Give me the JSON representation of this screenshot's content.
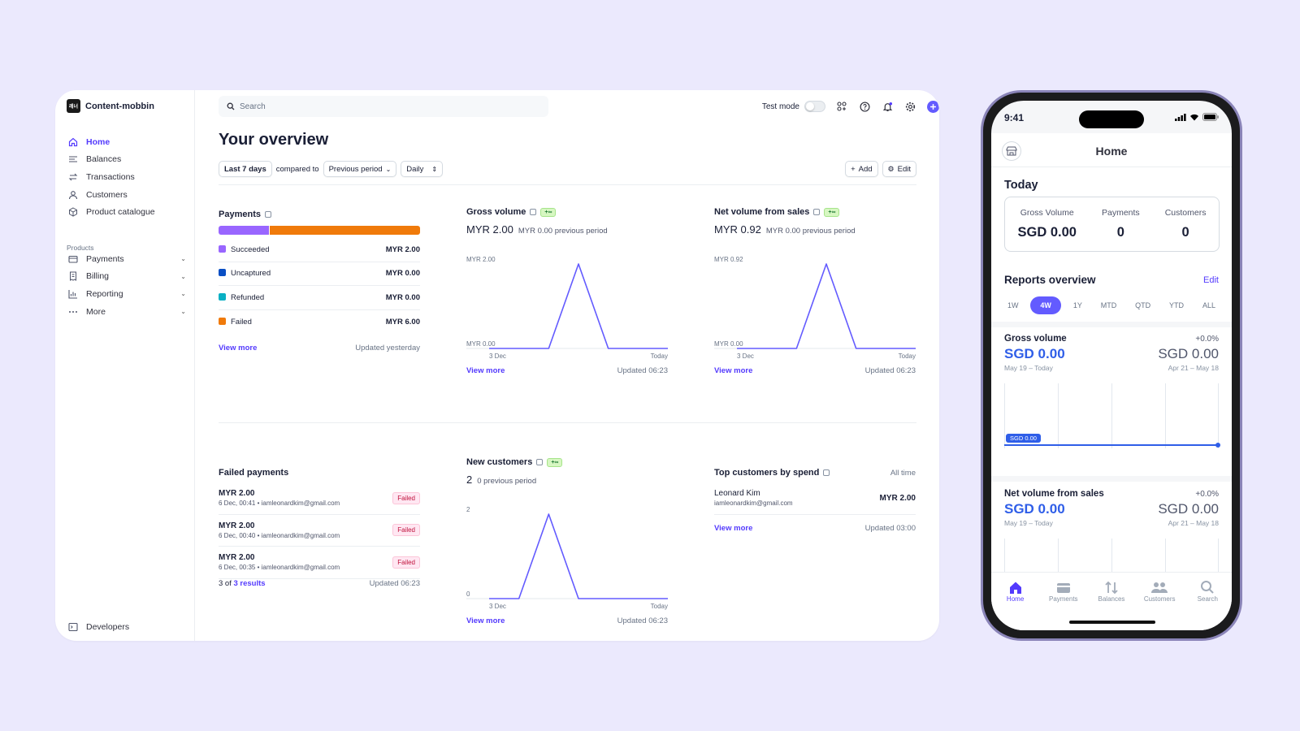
{
  "sidebar": {
    "account_name": "Content-mobbin",
    "logo_text": "레너",
    "items": [
      {
        "label": "Home",
        "icon": "home-icon"
      },
      {
        "label": "Balances",
        "icon": "balances-icon"
      },
      {
        "label": "Transactions",
        "icon": "transactions-icon"
      },
      {
        "label": "Customers",
        "icon": "customers-icon"
      },
      {
        "label": "Product catalogue",
        "icon": "product-icon"
      }
    ],
    "products_heading": "Products",
    "product_items": [
      {
        "label": "Payments",
        "icon": "payments-icon"
      },
      {
        "label": "Billing",
        "icon": "billing-icon"
      },
      {
        "label": "Reporting",
        "icon": "reporting-icon"
      },
      {
        "label": "More",
        "icon": "more-icon"
      }
    ],
    "developers": "Developers"
  },
  "topbar": {
    "search_placeholder": "Search",
    "test_mode": "Test mode"
  },
  "overview": {
    "title": "Your overview",
    "range": "Last 7 days",
    "compared_to": "compared to",
    "comparison": "Previous period",
    "interval": "Daily",
    "add": "Add",
    "edit": "Edit"
  },
  "payments": {
    "title": "Payments",
    "segments": [
      {
        "label": "Succeeded",
        "value": "MYR 2.00",
        "share": 0.25,
        "color": "#9966ff"
      },
      {
        "label": "Uncaptured",
        "value": "MYR 0.00",
        "share": 0,
        "color": "#0a4fc4"
      },
      {
        "label": "Refunded",
        "value": "MYR 0.00",
        "share": 0,
        "color": "#0ab0c4"
      },
      {
        "label": "Failed",
        "value": "MYR 6.00",
        "share": 0.75,
        "color": "#f07a0a"
      }
    ],
    "view_more": "View more",
    "updated": "Updated yesterday"
  },
  "gross_volume": {
    "title": "Gross volume",
    "badge": "+∞",
    "value": "MYR 2.00",
    "previous": "MYR 0.00 previous period",
    "view_more": "View more",
    "updated": "Updated 06:23"
  },
  "net_volume": {
    "title": "Net volume from sales",
    "badge": "+∞",
    "value": "MYR 0.92",
    "previous": "MYR 0.00 previous period",
    "view_more": "View more",
    "updated": "Updated 06:23"
  },
  "failed_payments": {
    "title": "Failed payments",
    "rows": [
      {
        "amount": "MYR 2.00",
        "meta": "6 Dec, 00:41 • iamleonardkim@gmail.com",
        "status": "Failed"
      },
      {
        "amount": "MYR 2.00",
        "meta": "6 Dec, 00:40 • iamleonardkim@gmail.com",
        "status": "Failed"
      },
      {
        "amount": "MYR 2.00",
        "meta": "6 Dec, 00:35 • iamleonardkim@gmail.com",
        "status": "Failed"
      }
    ],
    "results_prefix": "3 of",
    "results_link": "3 results",
    "updated": "Updated 06:23"
  },
  "new_customers": {
    "title": "New customers",
    "badge": "+∞",
    "value": "2",
    "previous": "0 previous period",
    "view_more": "View more",
    "updated": "Updated 06:23"
  },
  "top_customers": {
    "title": "Top customers by spend",
    "period": "All time",
    "name": "Leonard Kim",
    "email": "iamleonardkim@gmail.com",
    "amount": "MYR 2.00",
    "view_more": "View more",
    "updated": "Updated 03:00"
  },
  "chart_data": [
    {
      "type": "line",
      "title": "Gross volume",
      "x_labels": [
        "3 Dec",
        "Today"
      ],
      "y_tick_labels": [
        "MYR 2.00",
        "MYR 0.00"
      ],
      "ylim": [
        0,
        2
      ],
      "series": [
        {
          "values": [
            0,
            0,
            0,
            2,
            0,
            0,
            0
          ]
        }
      ],
      "color": "#635bff"
    },
    {
      "type": "line",
      "title": "Net volume from sales",
      "x_labels": [
        "3 Dec",
        "Today"
      ],
      "y_tick_labels": [
        "MYR 0.92",
        "MYR 0.00"
      ],
      "ylim": [
        0,
        0.92
      ],
      "series": [
        {
          "values": [
            0,
            0,
            0,
            0.92,
            0,
            0,
            0
          ]
        }
      ],
      "color": "#635bff"
    },
    {
      "type": "line",
      "title": "New customers",
      "x_labels": [
        "3 Dec",
        "Today"
      ],
      "y_tick_labels": [
        "2",
        "0"
      ],
      "ylim": [
        0,
        2
      ],
      "series": [
        {
          "values": [
            0,
            0,
            2,
            0,
            0,
            0,
            0
          ]
        }
      ],
      "color": "#635bff"
    }
  ],
  "mobile": {
    "time": "9:41",
    "title": "Home",
    "today": "Today",
    "today_stats": [
      {
        "label": "Gross Volume",
        "value": "SGD 0.00"
      },
      {
        "label": "Payments",
        "value": "0"
      },
      {
        "label": "Customers",
        "value": "0"
      }
    ],
    "reports_title": "Reports overview",
    "reports_edit": "Edit",
    "ranges": [
      "1W",
      "4W",
      "1Y",
      "MTD",
      "QTD",
      "YTD",
      "ALL"
    ],
    "selected_range": "4W",
    "gross": {
      "title": "Gross volume",
      "pct": "+0.0%",
      "value": "SGD 0.00",
      "prev_value": "SGD 0.00",
      "range": "May 19 – Today",
      "prev_range": "Apr 21 – May 18",
      "tooltip": "SGD 0.00"
    },
    "net": {
      "title": "Net volume from sales",
      "pct": "+0.0%",
      "value": "SGD 0.00",
      "prev_value": "SGD 0.00",
      "range": "May 19 – Today",
      "prev_range": "Apr 21 – May 18"
    },
    "tabs": [
      {
        "label": "Home",
        "icon": "home-icon"
      },
      {
        "label": "Payments",
        "icon": "payments-icon"
      },
      {
        "label": "Balances",
        "icon": "balances-icon"
      },
      {
        "label": "Customers",
        "icon": "customers-icon"
      },
      {
        "label": "Search",
        "icon": "search-icon"
      }
    ]
  }
}
